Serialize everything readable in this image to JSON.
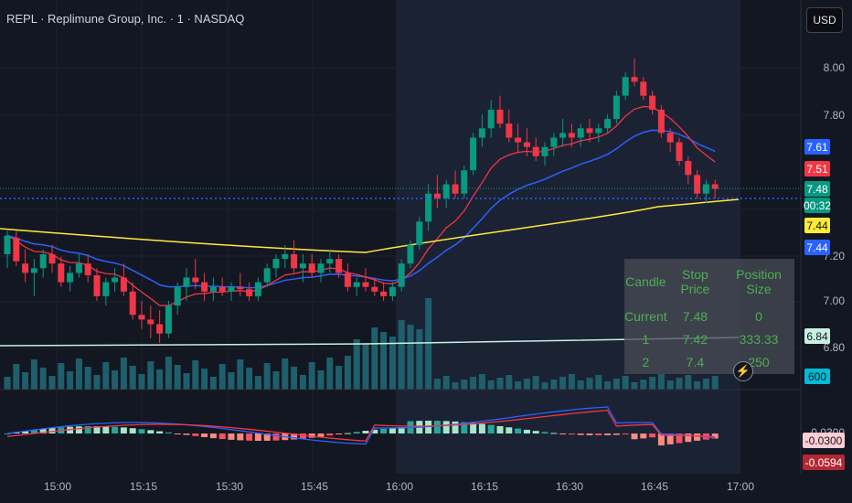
{
  "header": {
    "title": "REPL · Replimune Group, Inc. · 1 · NASDAQ"
  },
  "currency_button": "USD",
  "price_axis": {
    "labels": [
      "8.00",
      "7.80",
      "7.20",
      "7.00",
      "6.80"
    ]
  },
  "price_tags": [
    {
      "label": "7.61",
      "bg": "#2962ff",
      "fg": "#ffffff"
    },
    {
      "label": "7.51",
      "bg": "#f23645",
      "fg": "#ffffff"
    },
    {
      "label": "7.48",
      "bg": "#089981",
      "fg": "#ffffff"
    },
    {
      "label": "00:32",
      "bg": "#089981",
      "fg": "#ffffff"
    },
    {
      "label": "7.44",
      "bg": "#ffeb3b",
      "fg": "#131722"
    },
    {
      "label": "7.44",
      "bg": "#2962ff",
      "fg": "#ffffff"
    },
    {
      "label": "6.84",
      "bg": "#c8f0e0",
      "fg": "#131722"
    },
    {
      "label": "600",
      "bg": "#00bcd4",
      "fg": "#131722"
    },
    {
      "label": "-0.0300",
      "bg": "#ffcdd2",
      "fg": "#131722"
    },
    {
      "label": "-0.0594",
      "bg": "#b22833",
      "fg": "#ffffff"
    }
  ],
  "macd_axis_label": "-0.0300",
  "time_axis": {
    "labels": [
      "15:00",
      "15:15",
      "15:30",
      "15:45",
      "16:00",
      "16:15",
      "16:30",
      "16:45",
      "17:00"
    ]
  },
  "position_table": {
    "headers": [
      "Candle",
      "Stop Price",
      "Position Size"
    ],
    "rows": [
      [
        "Current",
        "7.48",
        "0"
      ],
      [
        "1",
        "7.42",
        "333.33"
      ],
      [
        "2",
        "7.4",
        "250"
      ]
    ]
  },
  "colors": {
    "up": "#089981",
    "down": "#f23645",
    "ema_fast": "#f23645",
    "ema_slow": "#2962ff",
    "sma_long": "#ffeb3b",
    "sma_low": "#c8f0e0",
    "volume": "#1f5f6b"
  },
  "chart_data": {
    "type": "candlestick",
    "title": "REPL · Replimune Group, Inc. · 1 · NASDAQ",
    "ylim": [
      6.76,
      8.08
    ],
    "candles": [
      [
        7.2,
        7.3,
        7.14,
        7.28
      ],
      [
        7.27,
        7.3,
        7.15,
        7.17
      ],
      [
        7.16,
        7.22,
        7.08,
        7.12
      ],
      [
        7.12,
        7.18,
        7.02,
        7.14
      ],
      [
        7.14,
        7.22,
        7.1,
        7.2
      ],
      [
        7.2,
        7.24,
        7.12,
        7.16
      ],
      [
        7.16,
        7.19,
        7.06,
        7.08
      ],
      [
        7.08,
        7.15,
        7.04,
        7.12
      ],
      [
        7.12,
        7.2,
        7.1,
        7.16
      ],
      [
        7.16,
        7.2,
        7.08,
        7.11
      ],
      [
        7.11,
        7.14,
        7.0,
        7.02
      ],
      [
        7.02,
        7.1,
        6.98,
        7.08
      ],
      [
        7.08,
        7.14,
        7.04,
        7.1
      ],
      [
        7.1,
        7.16,
        7.02,
        7.04
      ],
      [
        7.04,
        7.08,
        6.92,
        6.94
      ],
      [
        6.94,
        7.0,
        6.88,
        6.92
      ],
      [
        6.92,
        6.98,
        6.84,
        6.9
      ],
      [
        6.9,
        6.96,
        6.82,
        6.86
      ],
      [
        6.86,
        7.0,
        6.84,
        6.98
      ],
      [
        6.98,
        7.08,
        6.94,
        7.06
      ],
      [
        7.06,
        7.14,
        7.0,
        7.1
      ],
      [
        7.1,
        7.18,
        7.05,
        7.08
      ],
      [
        7.08,
        7.12,
        7.0,
        7.04
      ],
      [
        7.04,
        7.1,
        7.0,
        7.06
      ],
      [
        7.06,
        7.1,
        7.02,
        7.04
      ],
      [
        7.04,
        7.08,
        7.0,
        7.06
      ],
      [
        7.06,
        7.12,
        7.02,
        7.05
      ],
      [
        7.05,
        7.08,
        7.0,
        7.02
      ],
      [
        7.02,
        7.1,
        7.0,
        7.08
      ],
      [
        7.08,
        7.16,
        7.06,
        7.14
      ],
      [
        7.14,
        7.2,
        7.1,
        7.18
      ],
      [
        7.18,
        7.24,
        7.14,
        7.2
      ],
      [
        7.2,
        7.26,
        7.12,
        7.14
      ],
      [
        7.14,
        7.2,
        7.08,
        7.16
      ],
      [
        7.16,
        7.2,
        7.1,
        7.12
      ],
      [
        7.12,
        7.18,
        7.08,
        7.16
      ],
      [
        7.16,
        7.22,
        7.12,
        7.18
      ],
      [
        7.18,
        7.2,
        7.1,
        7.12
      ],
      [
        7.12,
        7.16,
        7.04,
        7.06
      ],
      [
        7.06,
        7.1,
        7.02,
        7.08
      ],
      [
        7.08,
        7.14,
        7.04,
        7.06
      ],
      [
        7.06,
        7.1,
        7.02,
        7.04
      ],
      [
        7.04,
        7.08,
        7.0,
        7.02
      ],
      [
        7.02,
        7.08,
        7.0,
        7.06
      ],
      [
        7.06,
        7.18,
        7.04,
        7.16
      ],
      [
        7.16,
        7.26,
        7.14,
        7.24
      ],
      [
        7.24,
        7.36,
        7.22,
        7.34
      ],
      [
        7.34,
        7.5,
        7.3,
        7.46
      ],
      [
        7.46,
        7.54,
        7.4,
        7.44
      ],
      [
        7.44,
        7.52,
        7.4,
        7.5
      ],
      [
        7.5,
        7.56,
        7.44,
        7.46
      ],
      [
        7.46,
        7.58,
        7.44,
        7.56
      ],
      [
        7.56,
        7.72,
        7.54,
        7.7
      ],
      [
        7.7,
        7.8,
        7.66,
        7.74
      ],
      [
        7.74,
        7.86,
        7.7,
        7.82
      ],
      [
        7.82,
        7.88,
        7.74,
        7.76
      ],
      [
        7.76,
        7.82,
        7.68,
        7.7
      ],
      [
        7.7,
        7.76,
        7.64,
        7.68
      ],
      [
        7.68,
        7.74,
        7.62,
        7.66
      ],
      [
        7.66,
        7.7,
        7.6,
        7.62
      ],
      [
        7.62,
        7.68,
        7.58,
        7.66
      ],
      [
        7.66,
        7.72,
        7.62,
        7.7
      ],
      [
        7.7,
        7.78,
        7.66,
        7.72
      ],
      [
        7.72,
        7.76,
        7.66,
        7.7
      ],
      [
        7.7,
        7.76,
        7.66,
        7.74
      ],
      [
        7.74,
        7.78,
        7.68,
        7.72
      ],
      [
        7.72,
        7.76,
        7.68,
        7.74
      ],
      [
        7.74,
        7.8,
        7.72,
        7.78
      ],
      [
        7.78,
        7.9,
        7.76,
        7.88
      ],
      [
        7.88,
        7.98,
        7.86,
        7.96
      ],
      [
        7.96,
        8.04,
        7.92,
        7.94
      ],
      [
        7.94,
        7.96,
        7.86,
        7.88
      ],
      [
        7.88,
        7.9,
        7.8,
        7.82
      ],
      [
        7.82,
        7.84,
        7.7,
        7.72
      ],
      [
        7.72,
        7.74,
        7.64,
        7.68
      ],
      [
        7.68,
        7.7,
        7.58,
        7.6
      ],
      [
        7.6,
        7.62,
        7.5,
        7.54
      ],
      [
        7.54,
        7.56,
        7.44,
        7.46
      ],
      [
        7.46,
        7.52,
        7.42,
        7.5
      ],
      [
        7.5,
        7.52,
        7.44,
        7.48
      ]
    ]
  }
}
